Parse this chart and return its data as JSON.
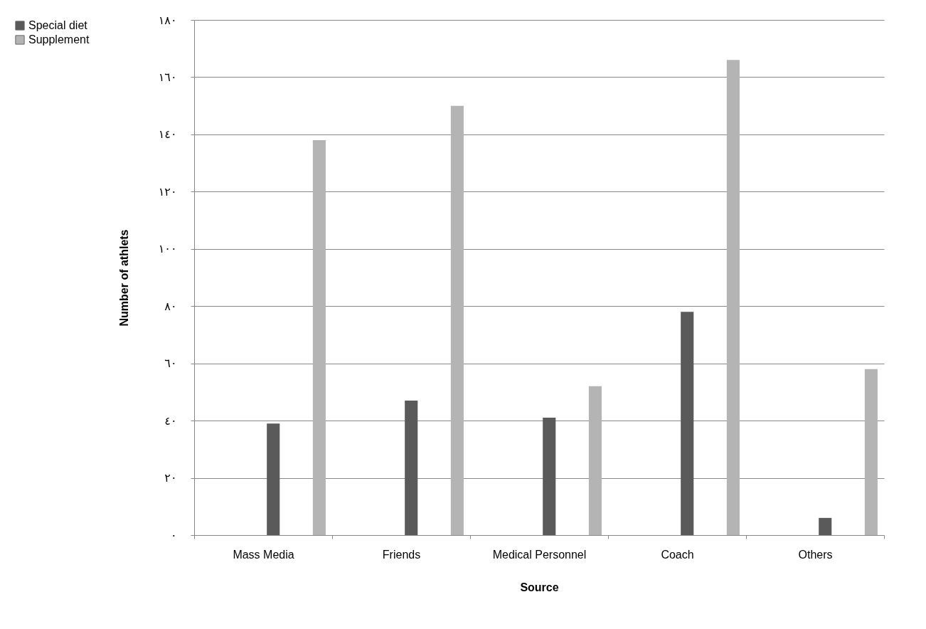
{
  "chart_data": {
    "type": "bar",
    "xlabel": "Source",
    "ylabel": "Number of athlets",
    "categories": [
      "Mass Media",
      "Friends",
      "Medical Personnel",
      "Coach",
      "Others"
    ],
    "series": [
      {
        "name": "Special diet",
        "color": "#5a5a5a",
        "values": [
          39,
          47,
          41,
          78,
          6
        ]
      },
      {
        "name": "Supplement",
        "color": "#b4b4b4",
        "values": [
          138,
          150,
          52,
          166,
          58
        ]
      }
    ],
    "ylim": [
      0,
      180
    ],
    "yticks": [
      {
        "value": 0,
        "label": "٠"
      },
      {
        "value": 20,
        "label": "٢٠"
      },
      {
        "value": 40,
        "label": "٤٠"
      },
      {
        "value": 60,
        "label": "٦٠"
      },
      {
        "value": 80,
        "label": "٨٠"
      },
      {
        "value": 100,
        "label": "١٠٠"
      },
      {
        "value": 120,
        "label": "١٢٠"
      },
      {
        "value": 140,
        "label": "١٤٠"
      },
      {
        "value": 160,
        "label": "١٦٠"
      },
      {
        "value": 180,
        "label": "١٨٠"
      }
    ],
    "grid": "y",
    "legend": "left"
  }
}
